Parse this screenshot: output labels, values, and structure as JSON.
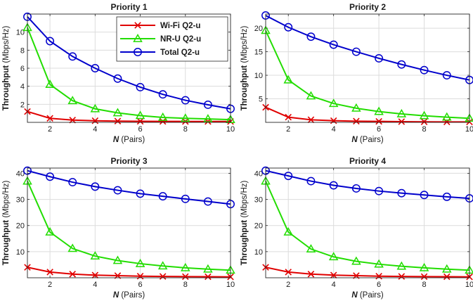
{
  "chart_data": [
    {
      "type": "line",
      "title": "Priority 1",
      "xlabel": "(Pairs)",
      "xlabel_var": "N",
      "ylabel": "(Mbps/Hz)",
      "ylabel_bold": "Throughput",
      "xlim": [
        1,
        10
      ],
      "ylim": [
        0,
        12
      ],
      "xticks": [
        2,
        4,
        6,
        8,
        10
      ],
      "yticks": [
        2,
        4,
        6,
        8,
        10
      ],
      "grid": true,
      "legend": "top-right",
      "x": [
        1,
        2,
        3,
        4,
        5,
        6,
        7,
        8,
        9,
        10
      ],
      "series": [
        {
          "name": "Wi-Fi Q2-u",
          "color": "#e00000",
          "marker": "x",
          "values": [
            1.2,
            0.45,
            0.25,
            0.18,
            0.14,
            0.12,
            0.11,
            0.1,
            0.1,
            0.1
          ]
        },
        {
          "name": "NR-U Q2-u",
          "color": "#22dd00",
          "marker": "triangle",
          "values": [
            10.5,
            4.2,
            2.4,
            1.5,
            1.05,
            0.75,
            0.55,
            0.45,
            0.38,
            0.3
          ]
        },
        {
          "name": "Total Q2-u",
          "color": "#0000cc",
          "marker": "circle",
          "values": [
            11.7,
            9.0,
            7.3,
            6.0,
            4.85,
            3.9,
            3.1,
            2.45,
            1.95,
            1.5
          ]
        }
      ]
    },
    {
      "type": "line",
      "title": "Priority 2",
      "xlabel": "(Pairs)",
      "xlabel_var": "N",
      "ylabel": "(Mbps/Hz)",
      "ylabel_bold": "Throughput",
      "xlim": [
        1,
        10
      ],
      "ylim": [
        0,
        23
      ],
      "xticks": [
        2,
        4,
        6,
        8,
        10
      ],
      "yticks": [
        5,
        10,
        15,
        20
      ],
      "grid": true,
      "x": [
        1,
        2,
        3,
        4,
        5,
        6,
        7,
        8,
        9,
        10
      ],
      "series": [
        {
          "name": "Wi-Fi Q2-u",
          "color": "#e00000",
          "marker": "x",
          "values": [
            3.2,
            1.1,
            0.55,
            0.35,
            0.25,
            0.2,
            0.15,
            0.12,
            0.1,
            0.1
          ]
        },
        {
          "name": "NR-U Q2-u",
          "color": "#22dd00",
          "marker": "triangle",
          "values": [
            19.5,
            9.0,
            5.6,
            4.0,
            3.0,
            2.3,
            1.8,
            1.4,
            1.1,
            0.85
          ]
        },
        {
          "name": "Total Q2-u",
          "color": "#0000cc",
          "marker": "circle",
          "values": [
            22.7,
            20.2,
            18.2,
            16.5,
            15.0,
            13.6,
            12.3,
            11.1,
            10.0,
            9.0
          ]
        }
      ]
    },
    {
      "type": "line",
      "title": "Priority 3",
      "xlabel": "(Pairs)",
      "xlabel_var": "N",
      "ylabel": "(Mbps/Hz)",
      "ylabel_bold": "Throughput",
      "xlim": [
        1,
        10
      ],
      "ylim": [
        0,
        42
      ],
      "xticks": [
        2,
        4,
        6,
        8,
        10
      ],
      "yticks": [
        10,
        20,
        30,
        40
      ],
      "grid": true,
      "x": [
        1,
        2,
        3,
        4,
        5,
        6,
        7,
        8,
        9,
        10
      ],
      "series": [
        {
          "name": "Wi-Fi Q2-u",
          "color": "#e00000",
          "marker": "x",
          "values": [
            4.0,
            2.2,
            1.4,
            1.0,
            0.8,
            0.6,
            0.5,
            0.45,
            0.4,
            0.35
          ]
        },
        {
          "name": "NR-U Q2-u",
          "color": "#22dd00",
          "marker": "triangle",
          "values": [
            37.0,
            17.5,
            11.2,
            8.3,
            6.6,
            5.4,
            4.5,
            3.8,
            3.3,
            2.9
          ]
        },
        {
          "name": "Total Q2-u",
          "color": "#0000cc",
          "marker": "circle",
          "values": [
            41.0,
            38.7,
            36.6,
            34.9,
            33.5,
            32.2,
            31.2,
            30.2,
            29.2,
            28.2
          ]
        }
      ]
    },
    {
      "type": "line",
      "title": "Priority 4",
      "xlabel": "(Pairs)",
      "xlabel_var": "N",
      "ylabel": "(Mbps/Hz)",
      "ylabel_bold": "Throughput",
      "xlim": [
        1,
        10
      ],
      "ylim": [
        0,
        42
      ],
      "xticks": [
        2,
        4,
        6,
        8,
        10
      ],
      "yticks": [
        10,
        20,
        30,
        40
      ],
      "grid": true,
      "x": [
        1,
        2,
        3,
        4,
        5,
        6,
        7,
        8,
        9,
        10
      ],
      "series": [
        {
          "name": "Wi-Fi Q2-u",
          "color": "#e00000",
          "marker": "x",
          "values": [
            4.0,
            2.2,
            1.4,
            1.0,
            0.8,
            0.6,
            0.5,
            0.45,
            0.4,
            0.35
          ]
        },
        {
          "name": "NR-U Q2-u",
          "color": "#22dd00",
          "marker": "triangle",
          "values": [
            37.0,
            17.5,
            11.0,
            8.0,
            6.3,
            5.2,
            4.4,
            3.8,
            3.3,
            2.9
          ]
        },
        {
          "name": "Total Q2-u",
          "color": "#0000cc",
          "marker": "circle",
          "values": [
            41.0,
            39.0,
            37.0,
            35.4,
            34.2,
            33.2,
            32.4,
            31.7,
            31.0,
            30.4
          ]
        }
      ]
    }
  ]
}
